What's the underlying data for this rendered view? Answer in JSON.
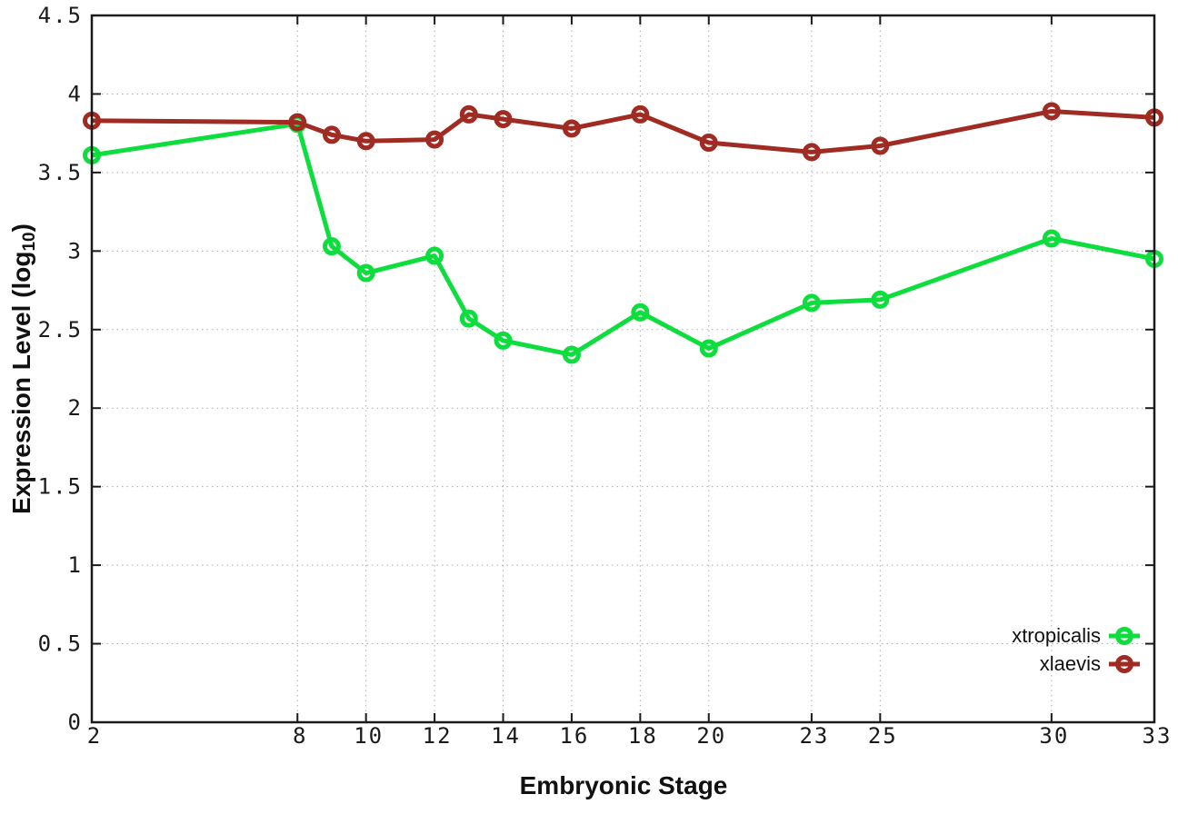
{
  "chart_data": {
    "type": "line",
    "title": "",
    "xlabel": "Embryonic Stage",
    "ylabel": {
      "prefix": "Expression Level (log",
      "sub": "10",
      "suffix": ")"
    },
    "xlim": [
      2,
      33
    ],
    "ylim": [
      0,
      4.5
    ],
    "grid": true,
    "legend_position": "bottom-right",
    "x": [
      2,
      8,
      9,
      10,
      12,
      13,
      14,
      16,
      18,
      20,
      23,
      25,
      30,
      33
    ],
    "xtick_labels": [
      "2",
      "8",
      "10",
      "12",
      "14",
      "16",
      "18",
      "20",
      "23",
      "25",
      "30",
      "33"
    ],
    "ytick_labels": [
      "0",
      "0.5",
      "1",
      "1.5",
      "2",
      "2.5",
      "3",
      "3.5",
      "4",
      "4.5"
    ],
    "series": [
      {
        "name": "xtropicalis",
        "color": "#0edd3e",
        "values": [
          3.61,
          3.81,
          3.03,
          2.86,
          2.97,
          2.57,
          2.43,
          2.34,
          2.61,
          2.38,
          2.67,
          2.69,
          3.08,
          2.95
        ]
      },
      {
        "name": "xlaevis",
        "color": "#a02b22",
        "values": [
          3.83,
          3.82,
          3.74,
          3.7,
          3.71,
          3.87,
          3.84,
          3.78,
          3.87,
          3.69,
          3.63,
          3.67,
          3.89,
          3.85
        ]
      }
    ],
    "colors": {
      "grid": "#ababab",
      "axis": "#1a1a1a",
      "tick_text": "#1a1a1a"
    }
  }
}
